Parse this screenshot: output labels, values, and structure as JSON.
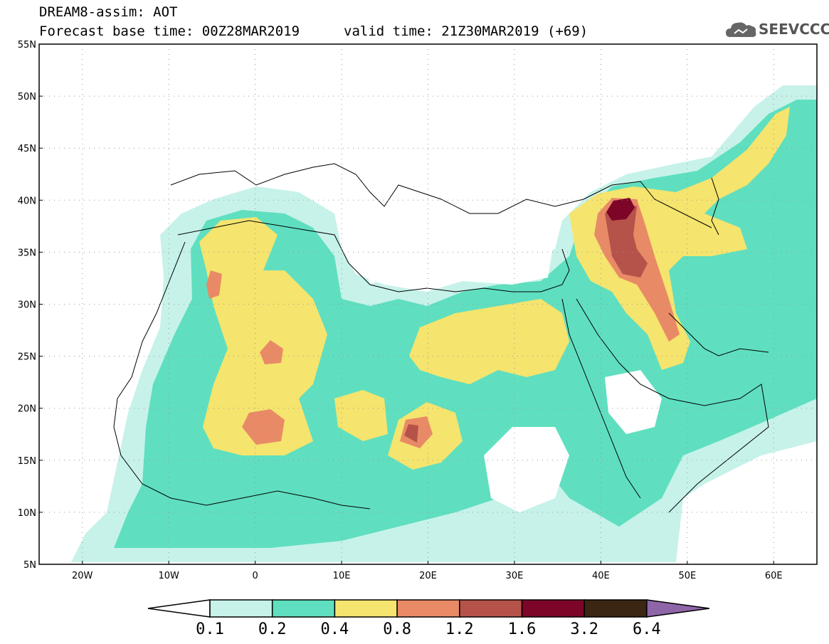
{
  "header": {
    "line1": "DREAM8-assim: AOT",
    "line2": "Forecast base time: 00Z28MAR2019",
    "valid": "valid time: 21Z30MAR2019 (+69)",
    "logo_text": "SEEVCCC"
  },
  "map": {
    "lon_labels": [
      "20W",
      "10W",
      "0",
      "10E",
      "20E",
      "30E",
      "40E",
      "50E",
      "60E"
    ],
    "lat_labels": [
      "55N",
      "50N",
      "45N",
      "40N",
      "35N",
      "30N",
      "25N",
      "20N",
      "15N",
      "10N",
      "5N"
    ],
    "lon_range": [
      -25,
      65
    ],
    "lat_range": [
      5,
      55
    ]
  },
  "colorbar": {
    "labels": [
      "0.1",
      "0.2",
      "0.4",
      "0.8",
      "1.2",
      "1.6",
      "3.2",
      "6.4"
    ],
    "colors": [
      "#c6f2ea",
      "#5fdfbf",
      "#f5e46e",
      "#e98a66",
      "#b5524a",
      "#7c0528",
      "#3a2612",
      "#8e66a8"
    ]
  }
}
